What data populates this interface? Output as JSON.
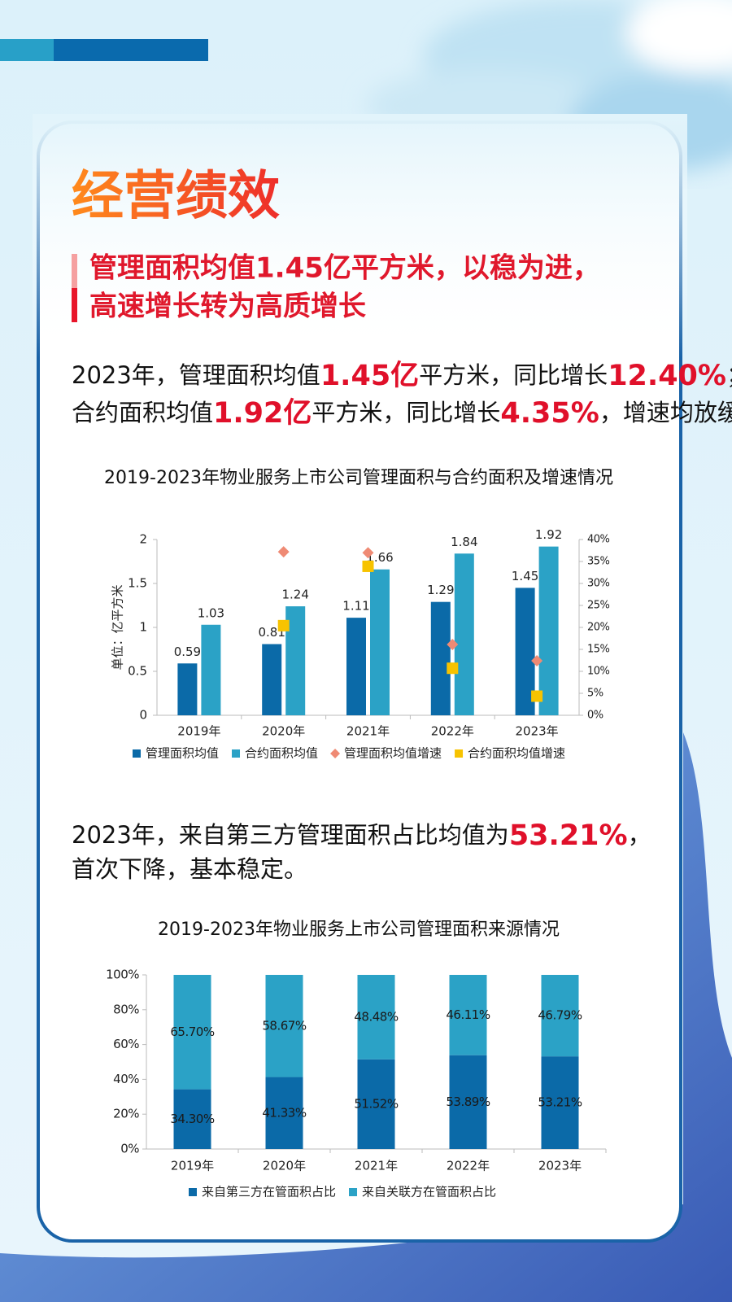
{
  "header": {
    "title": "经营绩效",
    "subtitle": [
      "管理面积均值1.45亿平方米，以稳为进，",
      "高速增长转为高质增长"
    ]
  },
  "paragraphs": [
    {
      "lines": [
        [
          {
            "text": "2023年，管理面积均值",
            "em": false
          },
          {
            "text": "1.45亿",
            "em": true
          },
          {
            "text": "平方米，同比增长",
            "em": false
          },
          {
            "text": "12.40%",
            "em": true
          },
          {
            "text": "；",
            "em": false
          }
        ],
        [
          {
            "text": "合约面积均值",
            "em": false
          },
          {
            "text": "1.92亿",
            "em": true
          },
          {
            "text": "平方米，同比增长",
            "em": false
          },
          {
            "text": "4.35%",
            "em": true
          },
          {
            "text": "，增速均放缓。",
            "em": false
          }
        ]
      ]
    },
    {
      "lines": [
        [
          {
            "text": "2023年，来自第三方管理面积占比均值为",
            "em": false
          },
          {
            "text": "53.21%",
            "em": true
          },
          {
            "text": "，",
            "em": false
          }
        ],
        [
          {
            "text": "首次下降，基本稳定。",
            "em": false
          }
        ]
      ]
    }
  ],
  "chart_data": [
    {
      "type": "bar",
      "title": "2019-2023年物业服务上市公司管理面积与合约面积及增速情况",
      "y_label": "单位：亿平方米",
      "categories": [
        "2019年",
        "2020年",
        "2021年",
        "2022年",
        "2023年"
      ],
      "series": [
        {
          "name": "管理面积均值",
          "color": "#0b6aa8",
          "values": [
            0.59,
            0.81,
            1.11,
            1.29,
            1.45
          ]
        },
        {
          "name": "合约面积均值",
          "color": "#2ba2c6",
          "values": [
            1.03,
            1.24,
            1.66,
            1.84,
            1.92
          ]
        },
        {
          "name": "管理面积均值增速",
          "color": "#ef8a74",
          "marker": "diamond",
          "axis": "y2",
          "values": [
            null,
            37.2,
            37,
            16.1,
            12.4
          ]
        },
        {
          "name": "合约面积均值增速",
          "color": "#f7c300",
          "marker": "square",
          "axis": "y2",
          "values": [
            null,
            20.4,
            33.9,
            10.7,
            4.35
          ]
        }
      ],
      "ylim": [
        0,
        2
      ],
      "yticks": [
        0,
        0.5,
        1,
        1.5,
        2
      ],
      "y2lim": [
        0,
        40
      ],
      "y2ticks": [
        {
          "value": 0,
          "label": "0%"
        },
        {
          "value": 5,
          "label": "5%"
        },
        {
          "value": 10,
          "label": "10%"
        },
        {
          "value": 15,
          "label": "15%"
        },
        {
          "value": 20,
          "label": "20%"
        },
        {
          "value": 25,
          "label": "25%"
        },
        {
          "value": 30,
          "label": "30%"
        },
        {
          "value": 35,
          "label": "35%"
        },
        {
          "value": 40,
          "label": "40%"
        }
      ],
      "data_labels": true,
      "legend": "bottom"
    },
    {
      "type": "stacked_bar",
      "title": "2019-2023年物业服务上市公司管理面积来源情况",
      "categories": [
        "2019年",
        "2020年",
        "2021年",
        "2022年",
        "2023年"
      ],
      "series": [
        {
          "name": "来自第三方在管面积占比",
          "color": "#0b6aa8",
          "values": [
            34.3,
            41.33,
            51.52,
            53.89,
            53.21
          ],
          "value_labels": [
            "34.30%",
            "41.33%",
            "51.52%",
            "53.89%",
            "53.21%"
          ]
        },
        {
          "name": "来自关联方在管面积占比",
          "color": "#2ba2c6",
          "values": [
            65.7,
            58.67,
            48.48,
            46.11,
            46.79
          ],
          "value_labels": [
            "65.70%",
            "58.67%",
            "48.48%",
            "46.11%",
            "46.79%"
          ]
        }
      ],
      "ylim": [
        0,
        100
      ],
      "yticks": [
        {
          "value": 0,
          "label": "0%"
        },
        {
          "value": 20,
          "label": "20%"
        },
        {
          "value": 40,
          "label": "40%"
        },
        {
          "value": 60,
          "label": "60%"
        },
        {
          "value": 80,
          "label": "80%"
        },
        {
          "value": 100,
          "label": "100%"
        }
      ],
      "data_labels": true,
      "legend": "bottom"
    }
  ]
}
